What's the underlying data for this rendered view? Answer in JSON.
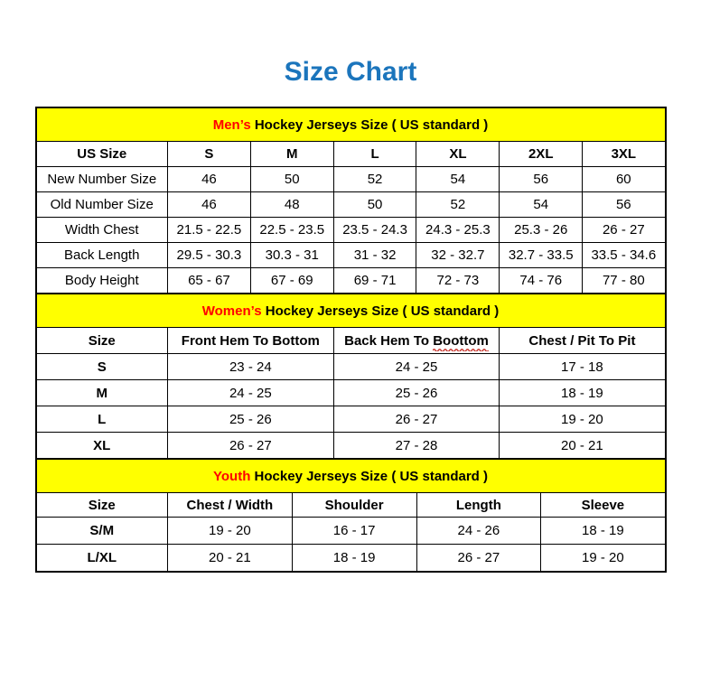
{
  "page": {
    "title": "Size Chart"
  },
  "colors": {
    "title_blue": "#1B75BC",
    "banner_yellow": "#FFFF00",
    "highlight_red": "#FF0000",
    "squiggle_red": "#C93A32",
    "border_black": "#000000"
  },
  "chart_data": [
    {
      "type": "table",
      "name": "mens",
      "title_highlight": "Men’s",
      "title_rest": " Hockey Jerseys Size ( US standard )",
      "columns": [
        "US Size",
        "S",
        "M",
        "L",
        "XL",
        "2XL",
        "3XL"
      ],
      "rows": [
        [
          "New Number Size",
          "46",
          "50",
          "52",
          "54",
          "56",
          "60"
        ],
        [
          "Old Number Size",
          "46",
          "48",
          "50",
          "52",
          "54",
          "56"
        ],
        [
          "Width Chest",
          "21.5 - 22.5",
          "22.5 - 23.5",
          "23.5 - 24.3",
          "24.3 - 25.3",
          "25.3 - 26",
          "26 - 27"
        ],
        [
          "Back Length",
          "29.5 - 30.3",
          "30.3 - 31",
          "31 - 32",
          "32 - 32.7",
          "32.7 - 33.5",
          "33.5 - 34.6"
        ],
        [
          "Body Height",
          "65 - 67",
          "67 - 69",
          "69 - 71",
          "72 - 73",
          "74 - 76",
          "77 - 80"
        ]
      ],
      "row_label_bold": false
    },
    {
      "type": "table",
      "name": "womens",
      "title_highlight": "Women’s",
      "title_rest": " Hockey Jerseys Size ( US standard )",
      "columns": [
        "Size",
        "Front Hem To Bottom",
        "Back Hem To Boottom",
        "Chest / Pit To Pit"
      ],
      "misspelled": {
        "column_index": 2,
        "word": "Boottom"
      },
      "rows": [
        [
          "S",
          "23 - 24",
          "24 - 25",
          "17 - 18"
        ],
        [
          "M",
          "24 - 25",
          "25 - 26",
          "18 - 19"
        ],
        [
          "L",
          "25 - 26",
          "26 - 27",
          "19 - 20"
        ],
        [
          "XL",
          "26 - 27",
          "27 - 28",
          "20 - 21"
        ]
      ],
      "row_label_bold": true
    },
    {
      "type": "table",
      "name": "youth",
      "title_highlight": "Youth",
      "title_rest": " Hockey Jerseys Size ( US standard )",
      "columns": [
        "Size",
        "Chest / Width",
        "Shoulder",
        "Length",
        "Sleeve"
      ],
      "rows": [
        [
          "S/M",
          "19 - 20",
          "16 - 17",
          "24 - 26",
          "18 - 19"
        ],
        [
          "L/XL",
          "20 - 21",
          "18 - 19",
          "26 - 27",
          "19 - 20"
        ]
      ],
      "row_label_bold": true
    }
  ]
}
